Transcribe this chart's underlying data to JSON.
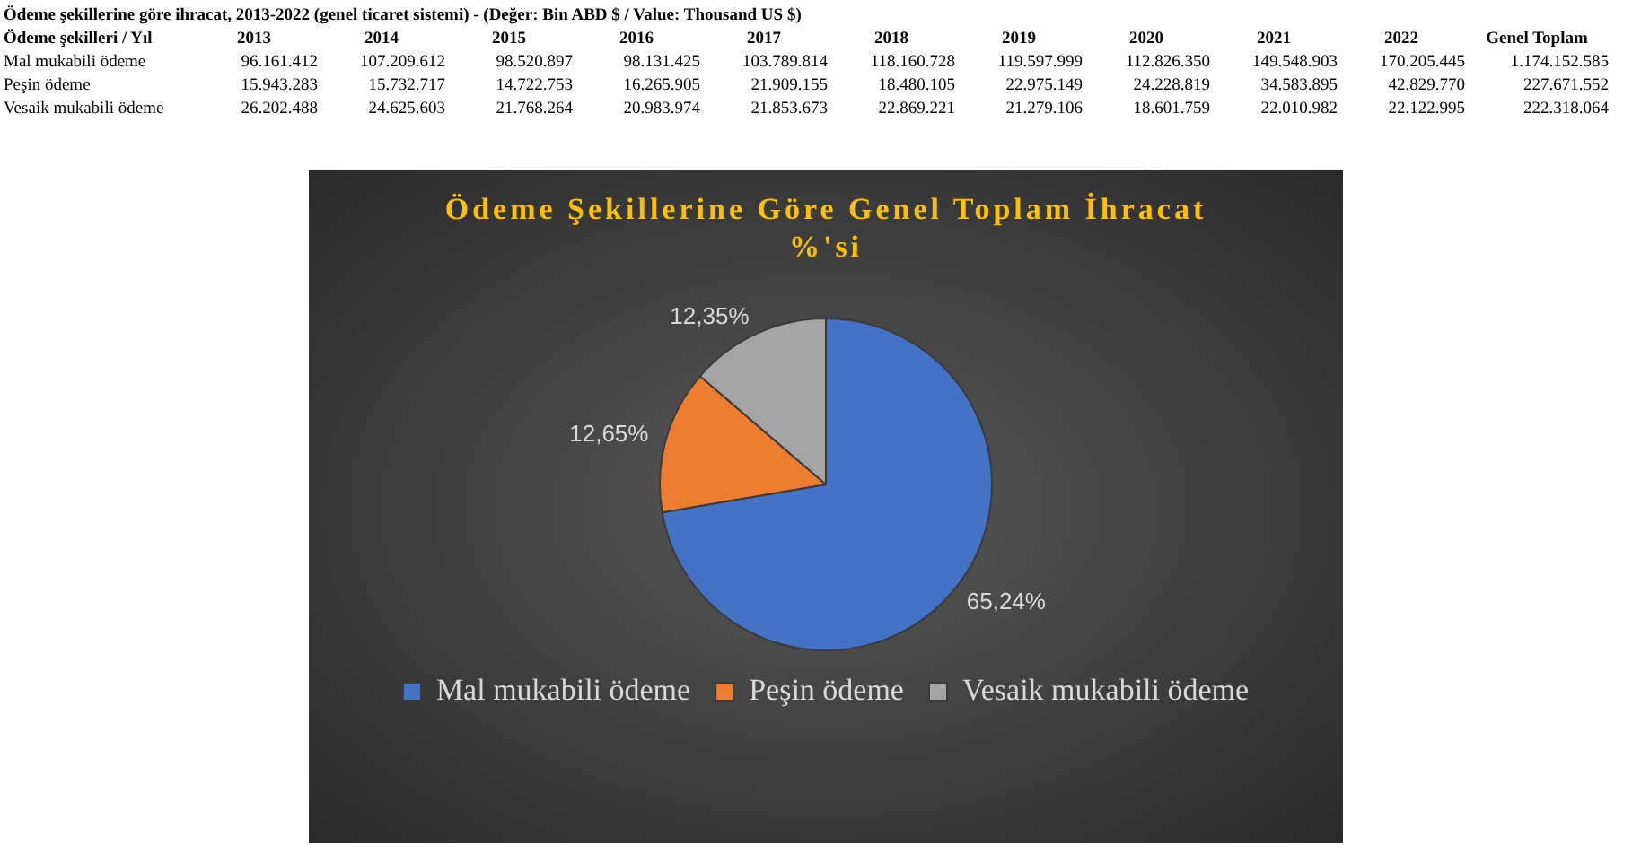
{
  "chart_data": [
    {
      "type": "heatmap",
      "title": "Ödeme şekillerine göre ihracat, 2013-2022 (genel ticaret sistemi) - (Değer: Bin ABD $ / Value: Thousand US $)",
      "ylabel": "Ödeme şekilleri / Yıl",
      "categories": [
        "2013",
        "2014",
        "2015",
        "2016",
        "2017",
        "2018",
        "2019",
        "2020",
        "2021",
        "2022",
        "Genel Toplam"
      ],
      "y_categories": [
        "Mal mukabili ödeme",
        "Peşin ödeme",
        "Vesaik mukabili ödeme"
      ],
      "cells": [
        [
          96161412,
          107209612,
          98520897,
          98131425,
          103789814,
          118160728,
          119597999,
          112826350,
          149548903,
          170205445,
          1174152585
        ],
        [
          15943283,
          15732717,
          14722753,
          16265905,
          21909155,
          18480105,
          22975149,
          24228819,
          34583895,
          42829770,
          227671552
        ],
        [
          26202488,
          24625603,
          21768264,
          20983974,
          21853673,
          22869221,
          21279106,
          18601759,
          22010982,
          22122995,
          222318064
        ]
      ],
      "cell_labels": [
        [
          "96.161.412",
          "107.209.612",
          "98.520.897",
          "98.131.425",
          "103.789.814",
          "118.160.728",
          "119.597.999",
          "112.826.350",
          "149.548.903",
          "170.205.445",
          "1.174.152.585"
        ],
        [
          "15.943.283",
          "15.732.717",
          "14.722.753",
          "16.265.905",
          "21.909.155",
          "18.480.105",
          "22.975.149",
          "24.228.819",
          "34.583.895",
          "42.829.770",
          "227.671.552"
        ],
        [
          "26.202.488",
          "24.625.603",
          "21.768.264",
          "20.983.974",
          "21.853.673",
          "22.869.221",
          "21.279.106",
          "18.601.759",
          "22.010.982",
          "22.122.995",
          "222.318.064"
        ]
      ]
    },
    {
      "type": "pie",
      "title": "Ödeme Şekillerine Göre Genel Toplam İhracat %'si",
      "categories": [
        "Mal mukabili ödeme",
        "Peşin ödeme",
        "Vesaik mukabili ödeme"
      ],
      "values": [
        65.24,
        12.65,
        12.35
      ],
      "colors": [
        "#4472c4",
        "#ed7d31",
        "#a5a5a5"
      ],
      "value_labels": [
        "65,24%",
        "12,65%",
        "12,35%"
      ],
      "legend": "bottom"
    }
  ]
}
